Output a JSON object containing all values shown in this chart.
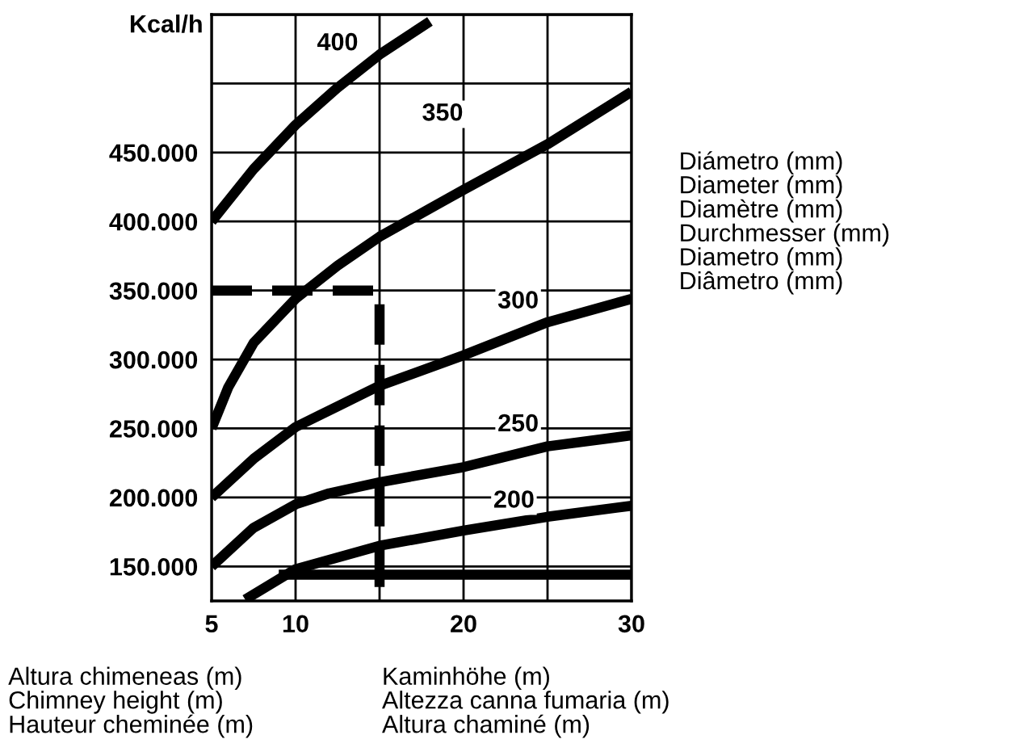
{
  "chart_data": {
    "type": "line",
    "ylabel": "Kcal/h",
    "annotations": [
      "Altura chimeneas (m)\nChimney height (m)\nHauteur cheminée (m)",
      "Kaminhöhe (m)\nAltezza canna fumaria (m)\nAltura chaminé (m)",
      "Diámetro (mm)\nDiameter (mm)\nDiamètre (mm)\nDurchmesser (mm)\nDiametro (mm)\nDiâmetro (mm)"
    ],
    "series": [
      {
        "name": "400",
        "color": "#000000",
        "x": [
          5,
          7.5,
          10,
          12.5,
          15,
          18
        ],
        "values": [
          400000,
          438000,
          470000,
          497000,
          521000,
          545000
        ]
      },
      {
        "name": "350",
        "color": "#000000",
        "x": [
          5,
          6,
          7.5,
          10,
          12.5,
          15,
          20,
          25,
          30
        ],
        "values": [
          250000,
          280000,
          312000,
          344000,
          368000,
          389000,
          423000,
          456000,
          494000
        ]
      },
      {
        "name": "300",
        "color": "#000000",
        "x": [
          5,
          7.5,
          10,
          15,
          20,
          25,
          30
        ],
        "values": [
          200000,
          228000,
          251000,
          281000,
          303000,
          327000,
          344000
        ]
      },
      {
        "name": "250",
        "color": "#000000",
        "x": [
          5,
          7.5,
          10,
          12,
          15,
          20,
          25,
          30
        ],
        "values": [
          150000,
          178000,
          195000,
          203000,
          211000,
          222000,
          237000,
          245000
        ]
      },
      {
        "name": "200",
        "color": "#000000",
        "x": [
          7,
          10,
          15,
          20,
          25,
          30
        ],
        "values": [
          126000,
          148000,
          165000,
          176000,
          186000,
          194000
        ]
      },
      {
        "color": "#000000",
        "x": [
          9,
          30
        ],
        "values": [
          144000,
          144000
        ]
      },
      {
        "color": "#000000",
        "x": [
          5,
          15,
          15
        ],
        "values": [
          350000,
          350000,
          125000
        ],
        "line_style": "dashed"
      }
    ],
    "xlim": [
      5,
      30
    ],
    "xticks": [
      5,
      10,
      {
        "value": 15,
        "label": null
      },
      20,
      {
        "value": 25,
        "label": null
      },
      30
    ],
    "ylim": [
      125000,
      550000
    ],
    "yticks": [
      {
        "value": 150000,
        "label": "150.000"
      },
      {
        "value": 200000,
        "label": "200.000"
      },
      {
        "value": 250000,
        "label": "250.000"
      },
      {
        "value": 300000,
        "label": "300.000"
      },
      {
        "value": 350000,
        "label": "350.000"
      },
      {
        "value": 400000,
        "label": "400.000"
      },
      {
        "value": 450000,
        "label": "450.000"
      },
      {
        "value": 500000,
        "label": null
      },
      {
        "value": 550000,
        "label": null
      }
    ],
    "grid": true,
    "line_style": "solid",
    "marker": "none"
  }
}
